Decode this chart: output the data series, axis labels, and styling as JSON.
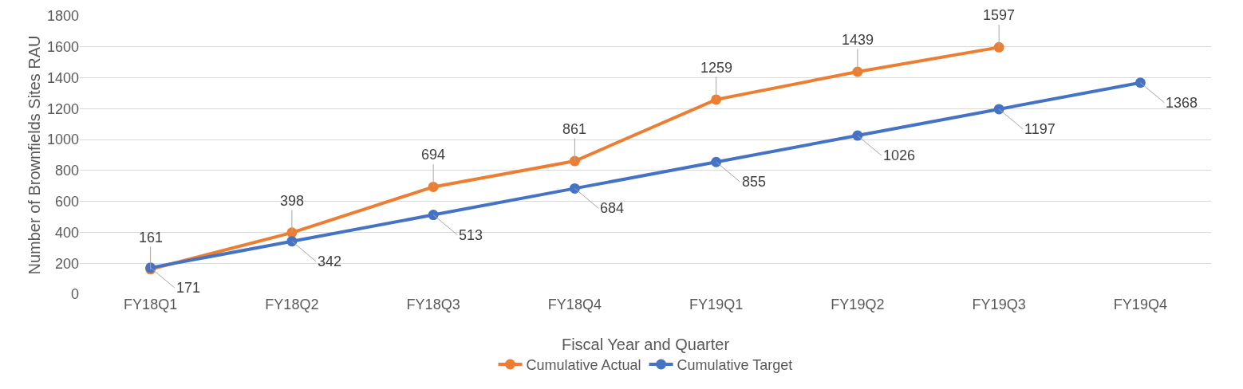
{
  "chart_data": {
    "type": "line",
    "xlabel": "Fiscal Year and Quarter",
    "ylabel": "Number of Brownfields Sites RAU",
    "categories": [
      "FY18Q1",
      "FY18Q2",
      "FY18Q3",
      "FY18Q4",
      "FY19Q1",
      "FY19Q2",
      "FY19Q3",
      "FY19Q4"
    ],
    "series": [
      {
        "name": "Cumulative Actual",
        "color": "#ed7d31",
        "values": [
          161,
          398,
          694,
          861,
          1259,
          1439,
          1597,
          null
        ]
      },
      {
        "name": "Cumulative Target",
        "color": "#4472c4",
        "values": [
          171,
          342,
          513,
          684,
          855,
          1026,
          1197,
          1368
        ]
      }
    ],
    "ylim": [
      0,
      1800
    ],
    "yticks": [
      0,
      200,
      400,
      600,
      800,
      1000,
      1200,
      1400,
      1600,
      1800
    ],
    "grid": "y",
    "legend": "bottom",
    "marker": "circle",
    "line_style": "solid",
    "data_labels": true
  }
}
